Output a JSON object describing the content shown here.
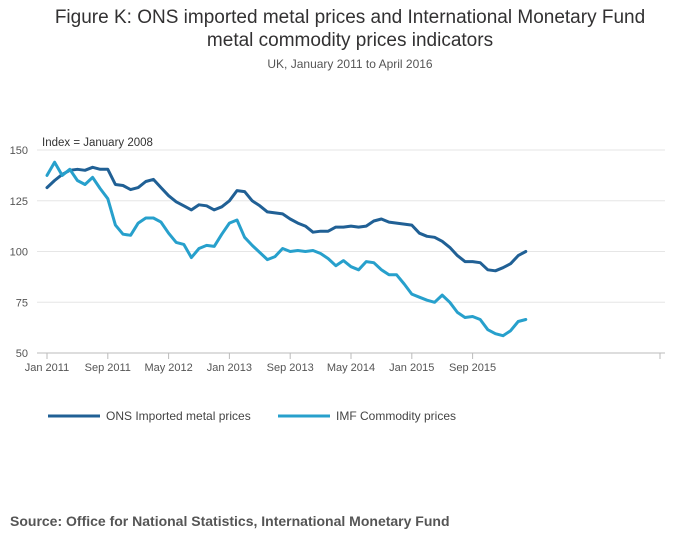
{
  "header": {
    "title_line1": "Figure K: ONS imported metal prices and International Monetary Fund",
    "title_line2": "metal commodity prices indicators",
    "subtitle": "UK, January 2011 to April 2016"
  },
  "footer": {
    "source": "Source: Office for National Statistics, International Monetary Fund"
  },
  "chart_data": {
    "type": "line",
    "title": "Figure K: ONS imported metal prices and International Monetary Fund metal commodity prices indicators",
    "subtitle": "UK, January 2011 to April 2016",
    "ylabel": "Index = January 2008",
    "xlabel": "",
    "ylim": [
      50,
      150
    ],
    "yticks": [
      50,
      75,
      100,
      125,
      150
    ],
    "grid": true,
    "legend_position": "bottom-left",
    "x": [
      "Jan 2011",
      "Feb 2011",
      "Mar 2011",
      "Apr 2011",
      "May 2011",
      "Jun 2011",
      "Jul 2011",
      "Aug 2011",
      "Sep 2011",
      "Oct 2011",
      "Nov 2011",
      "Dec 2011",
      "Jan 2012",
      "Feb 2012",
      "Mar 2012",
      "Apr 2012",
      "May 2012",
      "Jun 2012",
      "Jul 2012",
      "Aug 2012",
      "Sep 2012",
      "Oct 2012",
      "Nov 2012",
      "Dec 2012",
      "Jan 2013",
      "Feb 2013",
      "Mar 2013",
      "Apr 2013",
      "May 2013",
      "Jun 2013",
      "Jul 2013",
      "Aug 2013",
      "Sep 2013",
      "Oct 2013",
      "Nov 2013",
      "Dec 2013",
      "Jan 2014",
      "Feb 2014",
      "Mar 2014",
      "Apr 2014",
      "May 2014",
      "Jun 2014",
      "Jul 2014",
      "Aug 2014",
      "Sep 2014",
      "Oct 2014",
      "Nov 2014",
      "Dec 2014",
      "Jan 2015",
      "Feb 2015",
      "Mar 2015",
      "Apr 2015",
      "May 2015",
      "Jun 2015",
      "Jul 2015",
      "Aug 2015",
      "Sep 2015",
      "Oct 2015",
      "Nov 2015",
      "Dec 2015",
      "Jan 2016",
      "Feb 2016",
      "Mar 2016",
      "Apr 2016"
    ],
    "xtick_labels": [
      {
        "index": 0,
        "label": "Jan 2011"
      },
      {
        "index": 8,
        "label": "Sep 2011"
      },
      {
        "index": 16,
        "label": "May 2012"
      },
      {
        "index": 24,
        "label": "Jan 2013"
      },
      {
        "index": 32,
        "label": "Sep 2013"
      },
      {
        "index": 40,
        "label": "May 2014"
      },
      {
        "index": 48,
        "label": "Jan 2015"
      },
      {
        "index": 56,
        "label": "Sep 2015"
      }
    ],
    "series": [
      {
        "name": "ONS Imported metal prices",
        "color": "#206095",
        "values": [
          131.5,
          135,
          138,
          140,
          140.5,
          140,
          141.5,
          140.5,
          140.5,
          133,
          132.5,
          130.5,
          131.5,
          134.5,
          135.5,
          131.5,
          127.5,
          124.5,
          122.5,
          120.5,
          123,
          122.5,
          120.5,
          122,
          125,
          130,
          129.5,
          125,
          122.5,
          119.5,
          119,
          118.5,
          116,
          114,
          112.5,
          109.5,
          110,
          110,
          112,
          112,
          112.5,
          112,
          112.5,
          115,
          116,
          114.5,
          114,
          113.5,
          113,
          109,
          107.5,
          107,
          105,
          102,
          98,
          95,
          95,
          94.5,
          91,
          90.5,
          92,
          94,
          98,
          100
        ]
      },
      {
        "name": "IMF Commodity prices",
        "color": "#27a0cc",
        "values": [
          137.5,
          144,
          137.5,
          140.5,
          135,
          133,
          136.5,
          131,
          126,
          113,
          108.5,
          108,
          114,
          116.5,
          116.5,
          114.5,
          109,
          104.5,
          103.5,
          97,
          101.5,
          103,
          102.5,
          108.5,
          114,
          115.5,
          107,
          103,
          99.5,
          96,
          97.5,
          101.5,
          100,
          100.5,
          100,
          100.5,
          99,
          96.5,
          93,
          95.5,
          92.5,
          91,
          95,
          94.5,
          91,
          88.5,
          88.5,
          84,
          79,
          77.5,
          76,
          75,
          78.5,
          75,
          70,
          67.5,
          68,
          66.5,
          61.5,
          59.5,
          58.5,
          61,
          65.5,
          66.5
        ]
      }
    ]
  }
}
